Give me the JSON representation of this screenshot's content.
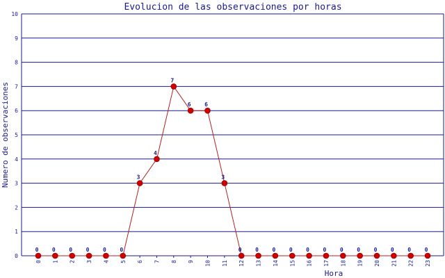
{
  "chart_data": {
    "type": "line",
    "title": "Evolucion de las observaciones por horas",
    "xlabel": "Hora",
    "ylabel": "Numero de observaciones",
    "categories": [
      "0",
      "1",
      "2",
      "3",
      "4",
      "5",
      "6",
      "7",
      "8",
      "9",
      "10",
      "11",
      "12",
      "13",
      "14",
      "15",
      "16",
      "17",
      "18",
      "19",
      "20",
      "21",
      "22",
      "23"
    ],
    "values": [
      0,
      0,
      0,
      0,
      0,
      0,
      3,
      4,
      7,
      6,
      6,
      3,
      0,
      0,
      0,
      0,
      0,
      0,
      0,
      0,
      0,
      0,
      0,
      0
    ],
    "ylim": [
      0,
      10
    ],
    "yticks": [
      "0",
      "1",
      "2",
      "3",
      "4",
      "5",
      "6",
      "7",
      "8",
      "9",
      "10"
    ],
    "grid": true,
    "colors": {
      "line": "#b22222",
      "marker": "#cc0000",
      "grid": "#1a1a8c",
      "text": "#1a1a8c"
    }
  }
}
